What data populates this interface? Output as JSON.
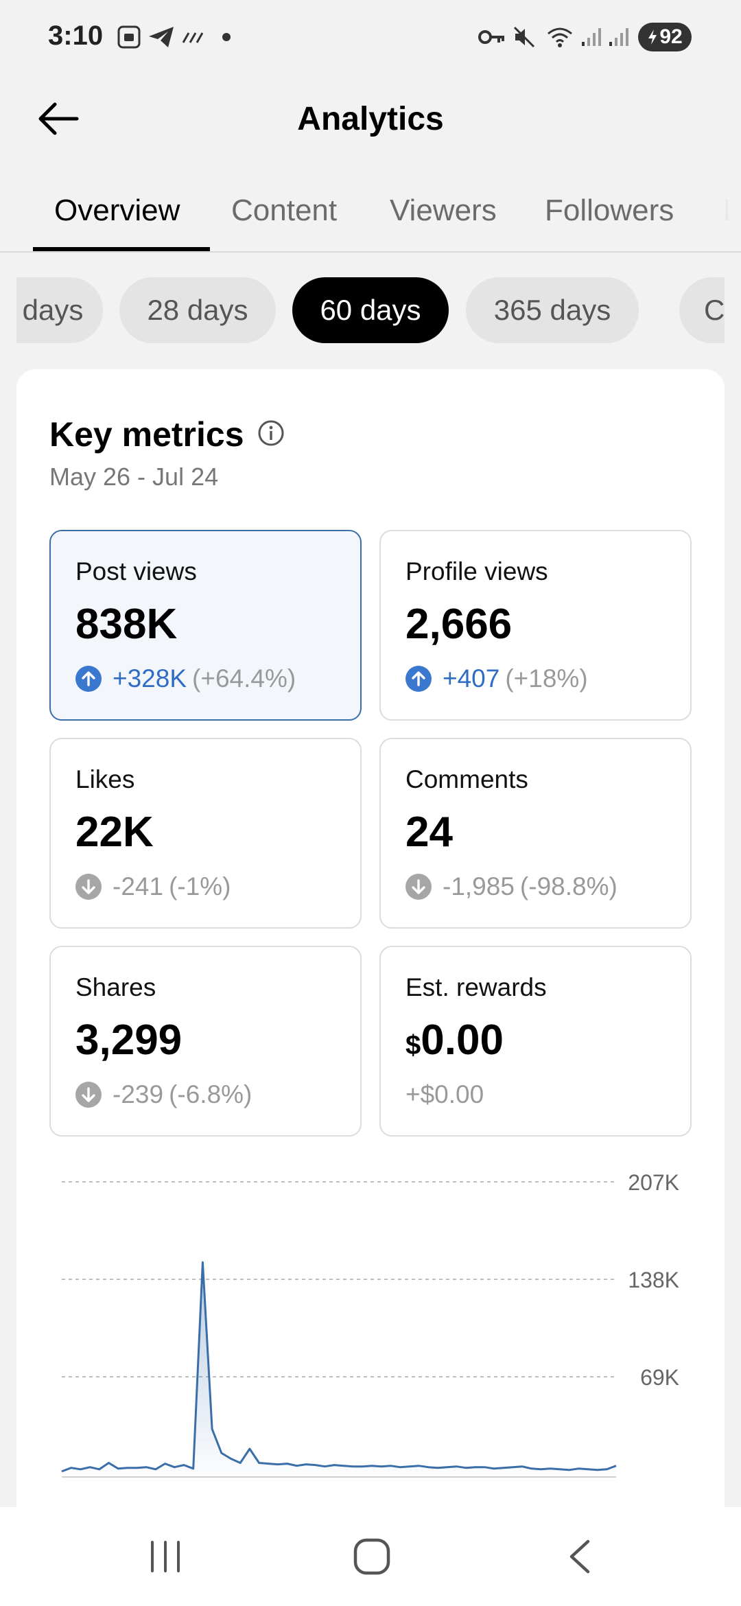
{
  "status_bar": {
    "time": "3:10",
    "battery": "92",
    "icons": [
      "screenshot-icon",
      "telegram-icon",
      "signal-dots-icon",
      "dot-icon",
      "vpn-key-icon",
      "mute-icon",
      "wifi-icon",
      "cell-signal-icon",
      "cell-signal-icon",
      "battery-icon"
    ]
  },
  "header": {
    "title": "Analytics",
    "back_icon": "arrow-left-icon"
  },
  "tabs": [
    {
      "label": "Overview",
      "active": true
    },
    {
      "label": "Content",
      "active": false
    },
    {
      "label": "Viewers",
      "active": false
    },
    {
      "label": "Followers",
      "active": false
    },
    {
      "label": "L",
      "active": false
    }
  ],
  "ranges": [
    {
      "label": "days",
      "active": false
    },
    {
      "label": "28 days",
      "active": false
    },
    {
      "label": "60 days",
      "active": true
    },
    {
      "label": "365 days",
      "active": false
    },
    {
      "label": "Cus",
      "active": false
    }
  ],
  "key_metrics": {
    "title": "Key metrics",
    "date_range": "May 26 - Jul 24",
    "metrics": [
      {
        "label": "Post views",
        "value": "838K",
        "delta": "+328K",
        "pct": "(+64.4%)",
        "trend": "up",
        "selected": true
      },
      {
        "label": "Profile views",
        "value": "2,666",
        "delta": "+407",
        "pct": "(+18%)",
        "trend": "up",
        "selected": false
      },
      {
        "label": "Likes",
        "value": "22K",
        "delta": "-241",
        "pct": "(-1%)",
        "trend": "down",
        "selected": false
      },
      {
        "label": "Comments",
        "value": "24",
        "delta": "-1,985",
        "pct": "(-98.8%)",
        "trend": "down",
        "selected": false
      },
      {
        "label": "Shares",
        "value": "3,299",
        "delta": "-239",
        "pct": "(-6.8%)",
        "trend": "down",
        "selected": false
      },
      {
        "label": "Est. rewards",
        "currency": "$",
        "value": "0.00",
        "delta": "+$0.00",
        "pct": "",
        "trend": "flat",
        "selected": false
      }
    ]
  },
  "chart_data": {
    "type": "area",
    "series": [
      {
        "values": [
          2000,
          4500,
          3500,
          5000,
          3500,
          8000,
          4000,
          4500,
          4500,
          5000,
          3500,
          7500,
          5000,
          6500,
          4000,
          150000,
          32000,
          15000,
          11000,
          8000,
          18000,
          8000,
          7500,
          7000,
          7500,
          6000,
          7000,
          6500,
          5500,
          6500,
          6000,
          5500,
          5500,
          6000,
          5500,
          6000,
          5000,
          5500,
          6000,
          5000,
          4500,
          5000,
          5500,
          4500,
          5000,
          5000,
          4000,
          4500,
          5000,
          5500,
          4000,
          3500,
          4000,
          3500,
          3000,
          4000,
          3500,
          3000,
          3500,
          6000
        ]
      }
    ],
    "y_ticks": [
      "207K",
      "138K",
      "69K"
    ],
    "y_tick_values": [
      207000,
      138000,
      69000
    ],
    "ylim": [
      0,
      207000
    ],
    "grid": true,
    "color": "#3a6ea8"
  },
  "navbar": {
    "icons": [
      "recents-icon",
      "home-icon",
      "back-icon"
    ]
  },
  "colors": {
    "accent_blue": "#2f6cc3",
    "muted": "#999999",
    "selected_border": "#3a6ea8"
  }
}
